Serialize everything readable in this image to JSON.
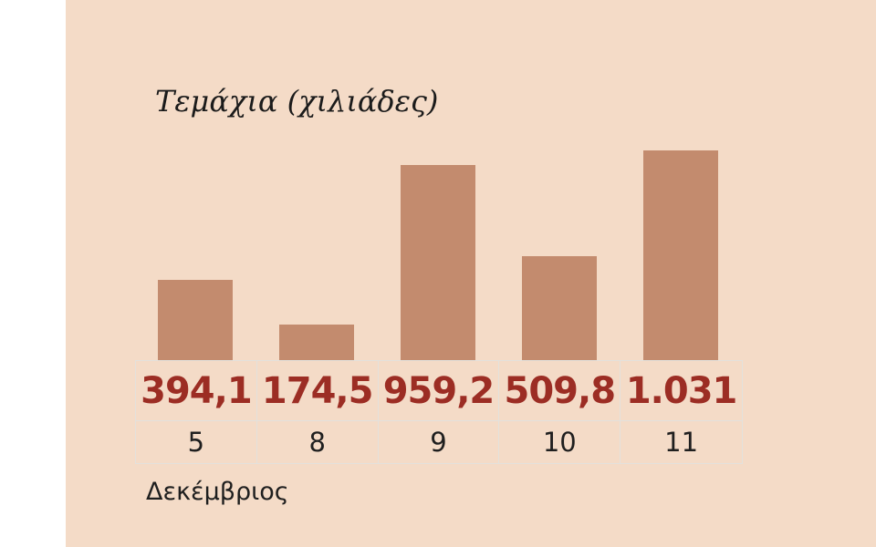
{
  "colors": {
    "background": "#f4dbc7",
    "left_strip": "#ffffff",
    "bar": "#c38b6e",
    "value_text": "#9c2d24",
    "day_text": "#1f1f1f",
    "title_text": "#1b1b1b",
    "grid_line": "#e3e1dc"
  },
  "chart_data": {
    "type": "bar",
    "title": "Τεμάχια (χιλιάδες)",
    "xlabel": "Δεκέμβριος",
    "categories": [
      "5",
      "8",
      "9",
      "10",
      "11"
    ],
    "values": [
      394.1,
      174.5,
      959.2,
      509.8,
      1031
    ],
    "value_labels": [
      "394,1",
      "174,5",
      "959,2",
      "509,8",
      "1.031"
    ],
    "ylim": [
      0,
      1031
    ],
    "grid": "off",
    "legend": "none"
  }
}
